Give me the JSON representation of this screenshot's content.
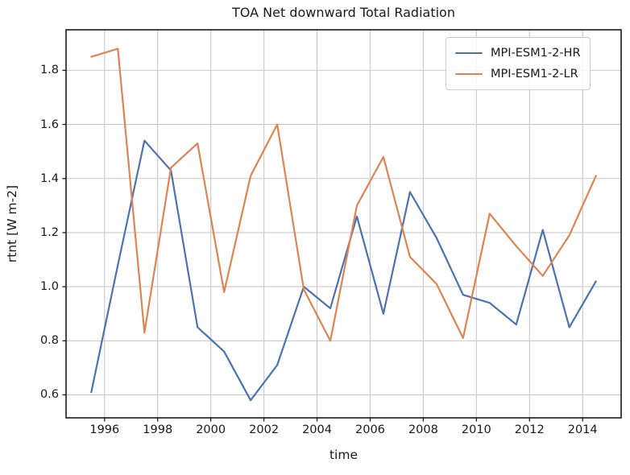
{
  "chart_data": {
    "type": "line",
    "title": "TOA Net downward Total Radiation",
    "xlabel": "time",
    "ylabel": "rtnt [W m-2]",
    "x": [
      1995.5,
      1996.5,
      1997.5,
      1998.5,
      1999.5,
      2000.5,
      2001.5,
      2002.5,
      2003.5,
      2004.5,
      2005.5,
      2006.5,
      2007.5,
      2008.5,
      2009.5,
      2010.5,
      2011.5,
      2012.5,
      2013.5,
      2014.5
    ],
    "series": [
      {
        "name": "MPI-ESM1-2-HR",
        "color": "#4c72b0",
        "values": [
          0.61,
          1.08,
          1.54,
          1.43,
          0.85,
          0.76,
          0.58,
          0.71,
          1.0,
          0.92,
          1.26,
          0.9,
          1.35,
          1.18,
          0.97,
          0.94,
          0.86,
          1.21,
          0.85,
          1.02
        ]
      },
      {
        "name": "MPI-ESM1-2-LR",
        "color": "#dd8452",
        "values": [
          1.85,
          1.88,
          0.83,
          1.44,
          1.53,
          0.98,
          1.41,
          1.6,
          0.99,
          0.8,
          1.3,
          1.48,
          1.11,
          1.01,
          0.81,
          1.27,
          1.15,
          1.04,
          1.19,
          1.41
        ]
      }
    ],
    "xlim": [
      1994.55,
      2015.45
    ],
    "ylim": [
      0.515,
      1.95
    ],
    "xticks": [
      1996,
      1998,
      2000,
      2002,
      2004,
      2006,
      2008,
      2010,
      2012,
      2014
    ],
    "yticks": [
      0.6,
      0.8,
      1.0,
      1.2,
      1.4,
      1.6,
      1.8
    ],
    "grid": true,
    "legend_position": "upper right",
    "grid_color": "#c9c9c9",
    "spine_color": "#1a1a1a",
    "tick_color": "#1a1a1a"
  }
}
